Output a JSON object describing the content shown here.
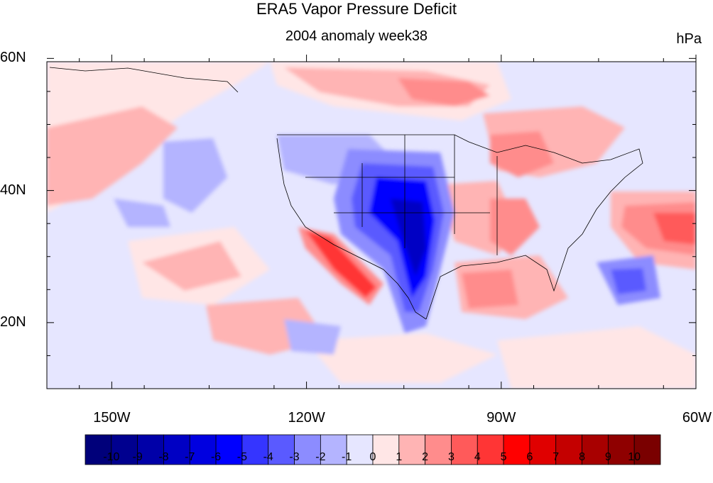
{
  "title": "ERA5 Vapor Pressure Deficit",
  "subtitle": "2004 anomaly week38",
  "units": "hPa",
  "lat_ticks": [
    {
      "label": "60N",
      "value": 60
    },
    {
      "label": "40N",
      "value": 40
    },
    {
      "label": "20N",
      "value": 20
    }
  ],
  "lon_ticks": [
    {
      "label": "150W",
      "value": -150
    },
    {
      "label": "120W",
      "value": -120
    },
    {
      "label": "90W",
      "value": -90
    },
    {
      "label": "60W",
      "value": -60
    }
  ],
  "colorbar": {
    "labels": [
      "-10",
      "-9",
      "-8",
      "-7",
      "-6",
      "-5",
      "-4",
      "-3",
      "-2",
      "-1",
      "0",
      "1",
      "2",
      "3",
      "4",
      "5",
      "6",
      "7",
      "8",
      "9",
      "10"
    ],
    "colors": [
      "#00007a",
      "#00008f",
      "#0000a8",
      "#0000c4",
      "#0000e0",
      "#0000ff",
      "#3535ff",
      "#5a5aff",
      "#8c8cff",
      "#b4b4ff",
      "#e6e6ff",
      "#ffe6e6",
      "#ffb4b4",
      "#ff8c8c",
      "#ff5a5a",
      "#ff3535",
      "#ff0000",
      "#e00000",
      "#c40000",
      "#a80000",
      "#8f0000",
      "#7a0000"
    ]
  }
}
